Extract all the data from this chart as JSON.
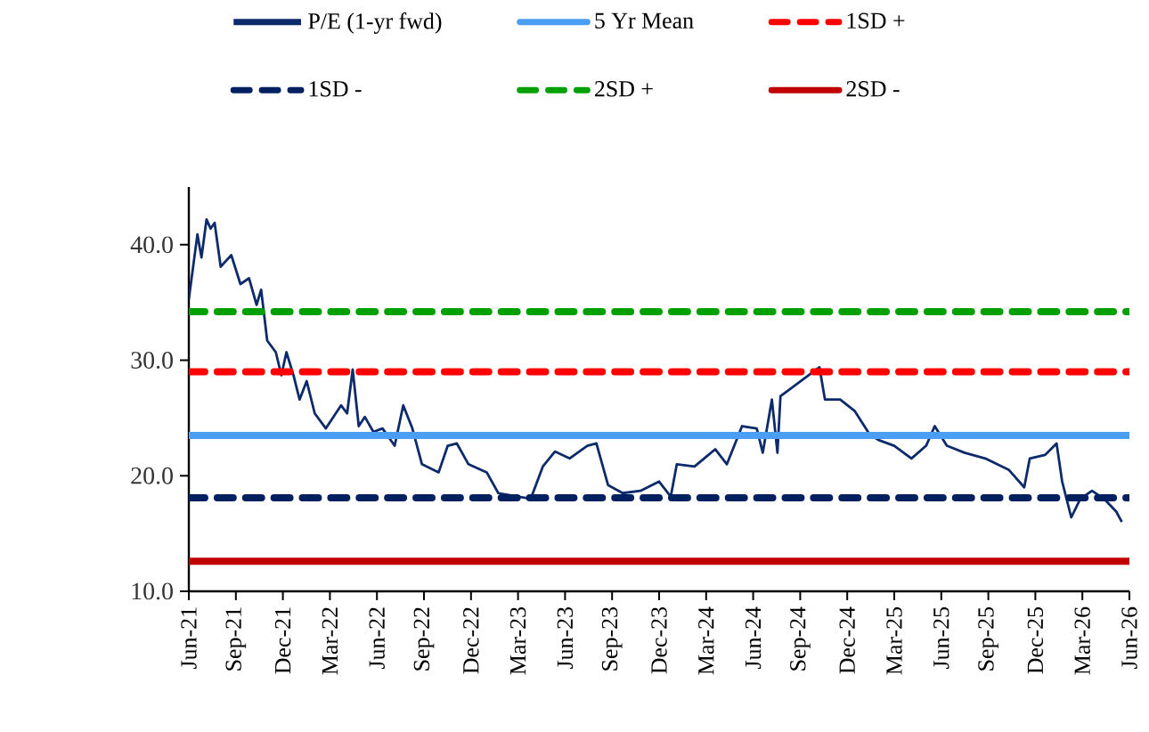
{
  "chart_data": {
    "type": "line",
    "legend": "top",
    "grid": false,
    "marker": "none",
    "xlim": [
      "2021-06",
      "2026-06"
    ],
    "xticks": [
      {
        "value": "2021-06",
        "label": "Jun-21"
      },
      {
        "value": "2021-09",
        "label": "Sep-21"
      },
      {
        "value": "2021-12",
        "label": "Dec-21"
      },
      {
        "value": "2022-03",
        "label": "Mar-22"
      },
      {
        "value": "2022-06",
        "label": "Jun-22"
      },
      {
        "value": "2022-09",
        "label": "Sep-22"
      },
      {
        "value": "2022-12",
        "label": "Dec-22"
      },
      {
        "value": "2023-03",
        "label": "Mar-23"
      },
      {
        "value": "2023-06",
        "label": "Jun-23"
      },
      {
        "value": "2023-09",
        "label": "Sep-23"
      },
      {
        "value": "2023-12",
        "label": "Dec-23"
      },
      {
        "value": "2024-03",
        "label": "Mar-24"
      },
      {
        "value": "2024-06",
        "label": "Jun-24"
      },
      {
        "value": "2024-09",
        "label": "Sep-24"
      },
      {
        "value": "2024-12",
        "label": "Dec-24"
      },
      {
        "value": "2025-03",
        "label": "Mar-25"
      },
      {
        "value": "2025-06",
        "label": "Jun-25"
      },
      {
        "value": "2025-09",
        "label": "Sep-25"
      },
      {
        "value": "2025-12",
        "label": "Dec-25"
      },
      {
        "value": "2026-03",
        "label": "Mar-26"
      },
      {
        "value": "2026-06",
        "label": "Jun-26"
      }
    ],
    "ylim": [
      10,
      45
    ],
    "yticks": [
      {
        "value": 10,
        "label": "10.0"
      },
      {
        "value": 20,
        "label": "20.0"
      },
      {
        "value": 30,
        "label": "30.0"
      },
      {
        "value": 40,
        "label": "40.0"
      }
    ],
    "series": [
      {
        "name": "P/E (1-yr fwd)",
        "color": "#0d2a6b",
        "line_style": "solid",
        "x": [
          "2021-06-01",
          "2021-06-18",
          "2021-06-26",
          "2021-07-05",
          "2021-07-13",
          "2021-07-21",
          "2021-08-02",
          "2021-08-23",
          "2021-09-10",
          "2021-09-27",
          "2021-10-11",
          "2021-10-20",
          "2021-11-01",
          "2021-11-18",
          "2021-11-29",
          "2021-12-08",
          "2021-12-22",
          "2022-01-03",
          "2022-01-17",
          "2022-02-02",
          "2022-02-24",
          "2022-03-23",
          "2022-04-04",
          "2022-04-15",
          "2022-04-27",
          "2022-05-08",
          "2022-05-25",
          "2022-06-12",
          "2022-07-05",
          "2022-07-22",
          "2022-08-09",
          "2022-08-28",
          "2022-09-30",
          "2022-10-17",
          "2022-11-04",
          "2022-11-27",
          "2023-01-01",
          "2023-01-24",
          "2023-03-26",
          "2023-04-19",
          "2023-05-12",
          "2023-06-10",
          "2023-07-14",
          "2023-08-01",
          "2023-08-24",
          "2023-09-22",
          "2023-10-26",
          "2023-12-01",
          "2023-12-24",
          "2024-01-05",
          "2024-02-09",
          "2024-03-19",
          "2024-04-11",
          "2024-05-10",
          "2024-06-08",
          "2024-06-20",
          "2024-07-07",
          "2024-07-18",
          "2024-07-24",
          "2024-10-08",
          "2024-10-19",
          "2024-11-18",
          "2024-12-16",
          "2025-01-14",
          "2025-02-01",
          "2025-03-01",
          "2025-04-04",
          "2025-05-02",
          "2025-05-19",
          "2025-06-12",
          "2025-07-16",
          "2025-08-26",
          "2025-10-11",
          "2025-11-10",
          "2025-11-21",
          "2025-12-20",
          "2026-01-12",
          "2026-01-23",
          "2026-02-10",
          "2026-02-28",
          "2026-03-20",
          "2026-04-13",
          "2026-05-06",
          "2026-05-17"
        ],
        "values": [
          35.3,
          40.9,
          38.9,
          42.2,
          41.4,
          41.9,
          38.1,
          39.1,
          36.6,
          37.1,
          34.8,
          36.1,
          31.7,
          30.7,
          28.7,
          30.7,
          28.7,
          26.6,
          28.2,
          25.4,
          24.1,
          26.1,
          25.4,
          29.2,
          24.3,
          25.1,
          23.8,
          24.1,
          22.6,
          26.1,
          24.1,
          21.0,
          20.3,
          22.6,
          22.8,
          21.0,
          20.3,
          18.5,
          18.0,
          20.8,
          22.1,
          21.5,
          22.6,
          22.8,
          19.2,
          18.5,
          18.7,
          19.5,
          18.2,
          21.0,
          20.8,
          22.3,
          21.0,
          24.3,
          24.1,
          22.0,
          26.6,
          22.0,
          26.9,
          29.4,
          26.6,
          26.6,
          25.6,
          23.6,
          23.1,
          22.6,
          21.5,
          22.6,
          24.3,
          22.6,
          22.0,
          21.5,
          20.5,
          19.0,
          21.5,
          21.8,
          22.8,
          19.5,
          16.4,
          18.0,
          18.7,
          18.0,
          16.9,
          16.0
        ]
      }
    ],
    "ref_lines": [
      {
        "axis": "y",
        "value": 23.5,
        "label": "5 Yr Mean",
        "color": "#4a9ff5",
        "line_style": "solid"
      },
      {
        "axis": "y",
        "value": 29.0,
        "label": "1SD +",
        "color": "#ff0000",
        "line_style": "dashed"
      },
      {
        "axis": "y",
        "value": 18.1,
        "label": "1SD -",
        "color": "#002060",
        "line_style": "dashed"
      },
      {
        "axis": "y",
        "value": 34.2,
        "label": "2SD +",
        "color": "#00a000",
        "line_style": "dashed"
      },
      {
        "axis": "y",
        "value": 12.6,
        "label": "2SD -",
        "color": "#c00000",
        "line_style": "solid"
      }
    ]
  }
}
